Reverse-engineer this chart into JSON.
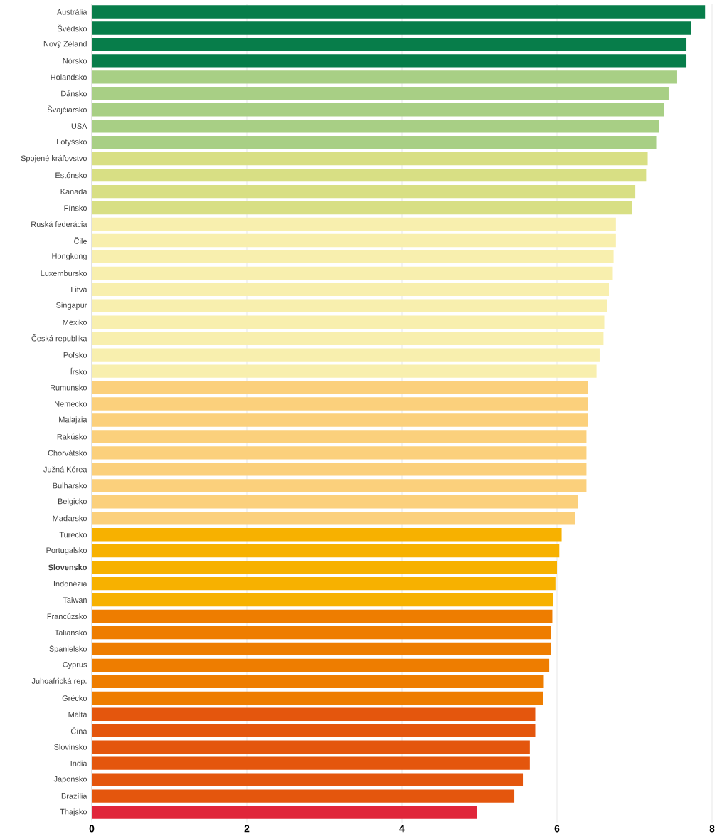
{
  "chart_data": {
    "type": "bar",
    "orientation": "horizontal",
    "categories": [
      "Austrália",
      "Švédsko",
      "Nový Zéland",
      "Nórsko",
      "Holandsko",
      "Dánsko",
      "Švajčiarsko",
      "USA",
      "Lotyšsko",
      "Spojené kráľovstvo",
      "Estónsko",
      "Kanada",
      "Fínsko",
      "Ruská federácia",
      "Čile",
      "Hongkong",
      "Luxembursko",
      "Litva",
      "Singapur",
      "Mexiko",
      "Česká republika",
      "Poľsko",
      "Írsko",
      "Rumunsko",
      "Nemecko",
      "Malajzia",
      "Rakúsko",
      "Chorvátsko",
      "Južná Kórea",
      "Bulharsko",
      "Belgicko",
      "Maďarsko",
      "Turecko",
      "Portugalsko",
      "**Slovensko**",
      "Indonézia",
      "Taiwan",
      "Francúzsko",
      "Taliansko",
      "Španielsko",
      "Cyprus",
      "Juhoafrická rep.",
      "Grécko",
      "Malta",
      "Čína",
      "Slovinsko",
      "India",
      "Japonsko",
      "Brazília",
      "Thajsko"
    ],
    "values": [
      7.91,
      7.73,
      7.67,
      7.67,
      7.55,
      7.44,
      7.38,
      7.32,
      7.28,
      7.17,
      7.15,
      7.01,
      6.97,
      6.76,
      6.76,
      6.73,
      6.72,
      6.67,
      6.65,
      6.61,
      6.6,
      6.55,
      6.51,
      6.4,
      6.4,
      6.4,
      6.38,
      6.38,
      6.38,
      6.38,
      6.27,
      6.23,
      6.06,
      6.03,
      6.0,
      5.98,
      5.95,
      5.94,
      5.92,
      5.92,
      5.9,
      5.83,
      5.82,
      5.72,
      5.72,
      5.65,
      5.65,
      5.56,
      5.45,
      4.97
    ],
    "colors": [
      "#077d4a",
      "#077d4a",
      "#077d4a",
      "#077d4a",
      "#a8cf85",
      "#a8cf85",
      "#a8cf85",
      "#a8cf85",
      "#a8cf85",
      "#d8df84",
      "#d8df84",
      "#d8df84",
      "#d8df84",
      "#f8efae",
      "#f8efae",
      "#f8efae",
      "#f8efae",
      "#f8efae",
      "#f8efae",
      "#f8efae",
      "#f8efae",
      "#f8efae",
      "#f8efae",
      "#fbd07c",
      "#fbd07c",
      "#fbd07c",
      "#fbd07c",
      "#fbd07c",
      "#fbd07c",
      "#fbd07c",
      "#fbd07c",
      "#fbd07c",
      "#f7b100",
      "#f7b100",
      "#f7b100",
      "#f7b100",
      "#f7b100",
      "#ee7d00",
      "#ee7d00",
      "#ee7d00",
      "#ee7d00",
      "#ee7d00",
      "#ee7d00",
      "#e4560d",
      "#e4560d",
      "#e4560d",
      "#e4560d",
      "#e4560d",
      "#e4560d",
      "#e0263a"
    ],
    "xlim": [
      0,
      8
    ],
    "xticks": [
      0,
      2,
      4,
      6,
      8
    ],
    "grid": "x"
  }
}
